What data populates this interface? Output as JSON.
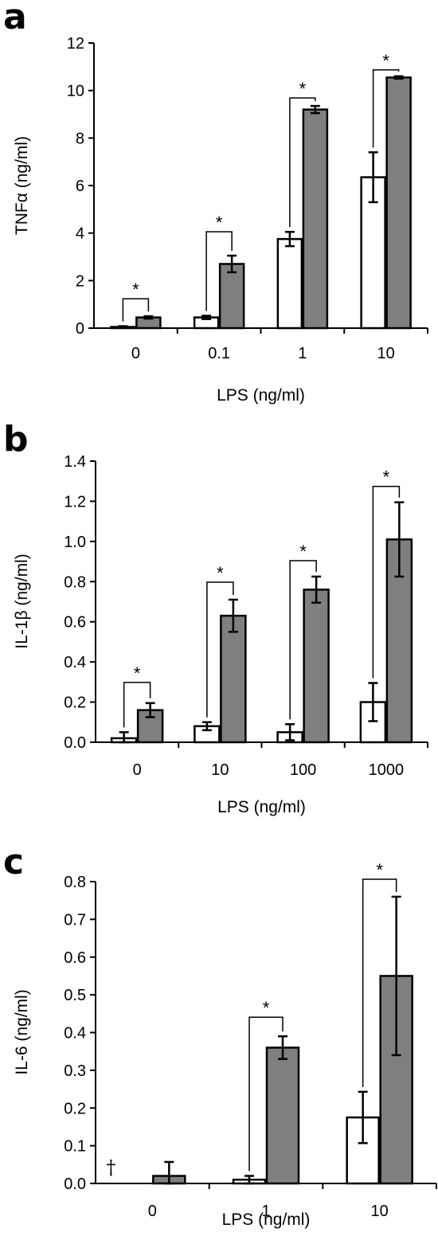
{
  "chart_data": [
    {
      "type": "bar",
      "panel": "a",
      "categories": [
        "0",
        "0.1",
        "1",
        "10"
      ],
      "series": [
        {
          "color": "#ffffff",
          "values": [
            0.05,
            0.45,
            3.75,
            6.35
          ],
          "errors": [
            0.03,
            0.07,
            0.3,
            1.05
          ]
        },
        {
          "color": "#7f7f7f",
          "values": [
            0.45,
            2.7,
            9.2,
            10.55
          ],
          "errors": [
            0.05,
            0.35,
            0.15,
            0.05
          ]
        }
      ],
      "ylim": [
        0,
        12
      ],
      "yticks": [
        "0",
        "2",
        "4",
        "6",
        "8",
        "10",
        "12"
      ],
      "ylabel": "TNFα (ng/ml)",
      "xlabel": "LPS (ng/ml)",
      "significance": [
        "*",
        "*",
        "*",
        "*"
      ]
    },
    {
      "type": "bar",
      "panel": "b",
      "categories": [
        "0",
        "10",
        "100",
        "1000"
      ],
      "series": [
        {
          "color": "#ffffff",
          "values": [
            0.02,
            0.08,
            0.05,
            0.2
          ],
          "errors": [
            0.03,
            0.02,
            0.04,
            0.095
          ]
        },
        {
          "color": "#7f7f7f",
          "values": [
            0.16,
            0.63,
            0.76,
            1.01
          ],
          "errors": [
            0.035,
            0.08,
            0.065,
            0.185
          ]
        }
      ],
      "ylim": [
        0,
        1.4
      ],
      "yticks": [
        "0.0",
        "0.2",
        "0.4",
        "0.6",
        "0.8",
        "1.0",
        "1.2",
        "1.4"
      ],
      "ylabel": "IL-1β (ng/ml)",
      "xlabel": "LPS (ng/ml)",
      "significance": [
        "*",
        "*",
        "*",
        "*"
      ]
    },
    {
      "type": "bar",
      "panel": "c",
      "categories": [
        "0",
        "1",
        "10"
      ],
      "series": [
        {
          "color": "#ffffff",
          "values": [
            0.0,
            0.01,
            0.175
          ],
          "errors": [
            0.0,
            0.01,
            0.068
          ]
        },
        {
          "color": "#7f7f7f",
          "values": [
            0.02,
            0.36,
            0.55
          ],
          "errors": [
            0.037,
            0.03,
            0.21
          ]
        }
      ],
      "ylim": [
        0,
        0.8
      ],
      "yticks": [
        "0.0",
        "0.1",
        "0.2",
        "0.3",
        "0.4",
        "0.5",
        "0.6",
        "0.7",
        "0.8"
      ],
      "ylabel": "IL-6 (ng/ml)",
      "xlabel": "LPS (ng/ml)",
      "significance": [
        "",
        "*",
        "*"
      ],
      "dagger": "†"
    }
  ]
}
